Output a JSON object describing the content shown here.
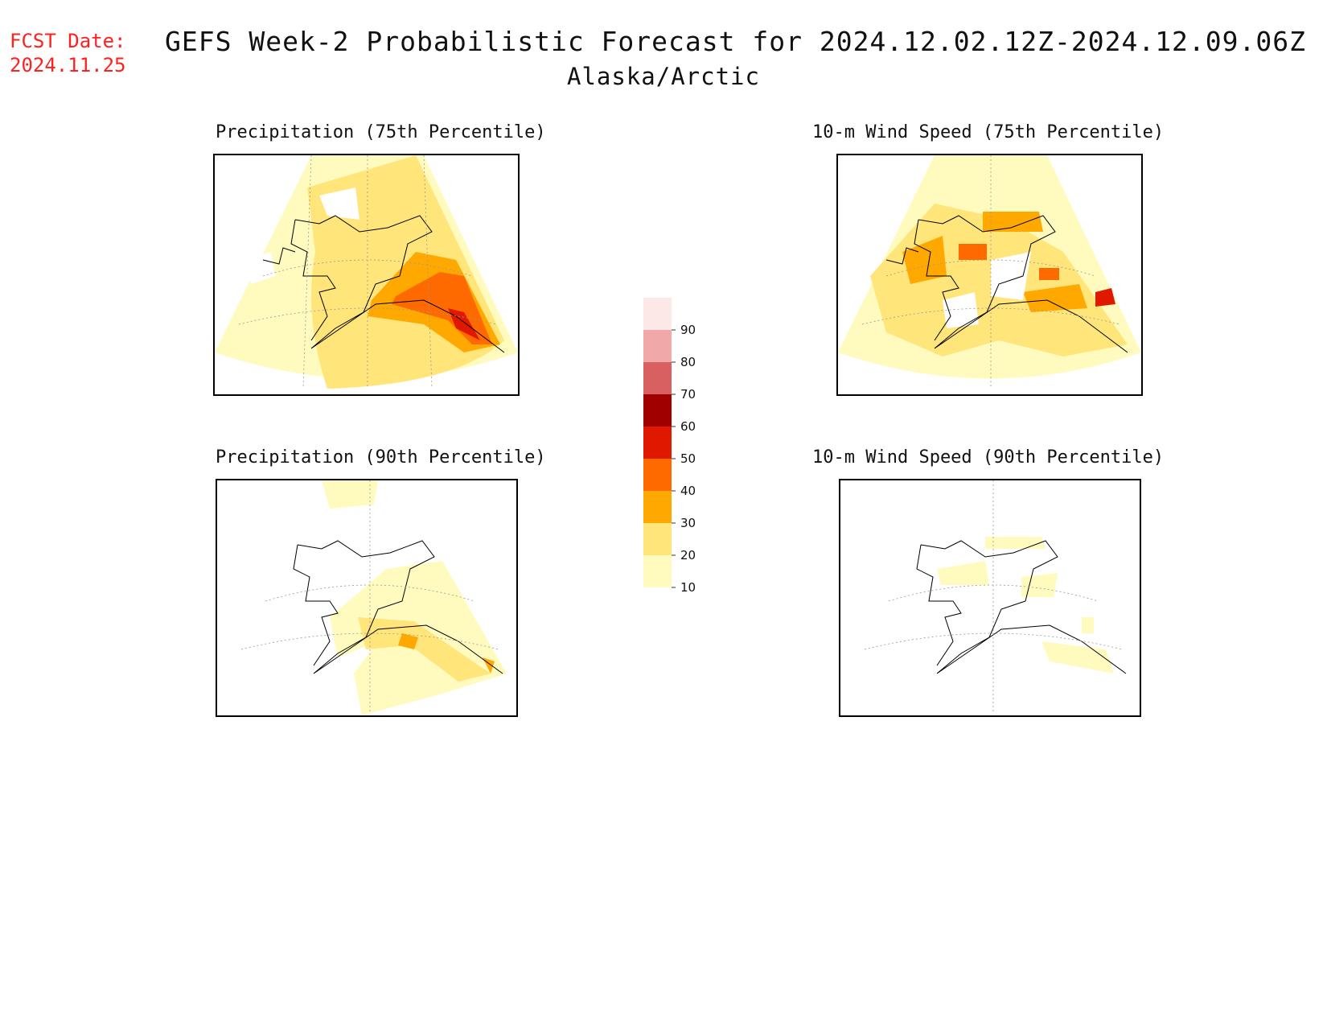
{
  "header": {
    "fcst_date_label": "FCST Date:",
    "fcst_date_value": "2024.11.25",
    "title": "GEFS Week-2 Probabilistic Forecast for 2024.12.02.12Z-2024.12.09.06Z",
    "subtitle": "Alaska/Arctic"
  },
  "panels": [
    {
      "id": "precip75",
      "title": "Precipitation (75th Percentile)"
    },
    {
      "id": "wind75",
      "title": "10-m Wind Speed (75th Percentile)"
    },
    {
      "id": "precip90",
      "title": "Precipitation (90th Percentile)"
    },
    {
      "id": "wind90",
      "title": "10-m Wind Speed (90th Percentile)"
    }
  ],
  "colorbar": {
    "levels": [
      "10",
      "20",
      "30",
      "40",
      "50",
      "60",
      "70",
      "80",
      "90"
    ],
    "colors": [
      "#fffbbf",
      "#ffe57a",
      "#ffa800",
      "#ff6a00",
      "#e01800",
      "#a00000",
      "#d86060",
      "#f0a8a8",
      "#fde8e8"
    ]
  }
}
